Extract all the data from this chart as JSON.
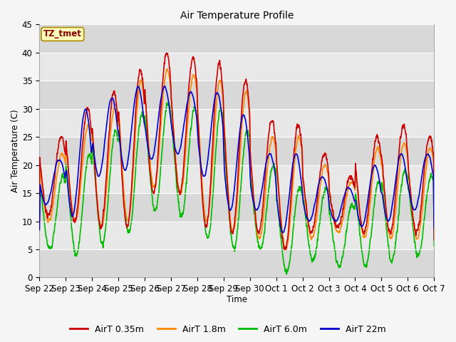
{
  "title": "Air Temperature Profile",
  "xlabel": "Time",
  "ylabel": "Air Temperature (C)",
  "ylim": [
    0,
    45
  ],
  "series_colors": {
    "AirT 0.35m": "#cc0000",
    "AirT 1.8m": "#ff8800",
    "AirT 6.0m": "#00bb00",
    "AirT 22m": "#0000cc"
  },
  "legend_label": "TZ_tmet",
  "tick_labels": [
    "Sep 22",
    "Sep 23",
    "Sep 24",
    "Sep 25",
    "Sep 26",
    "Sep 27",
    "Sep 28",
    "Sep 29",
    "Sep 30",
    "Oct 1",
    "Oct 2",
    "Oct 3",
    "Oct 4",
    "Oct 5",
    "Oct 6",
    "Oct 7"
  ],
  "yticks": [
    0,
    5,
    10,
    15,
    20,
    25,
    30,
    35,
    40,
    45
  ],
  "plot_bg": "#e8e8e8",
  "fig_bg": "#f5f5f5",
  "line_width": 1.2,
  "font_size": 8.5,
  "title_fontsize": 10
}
